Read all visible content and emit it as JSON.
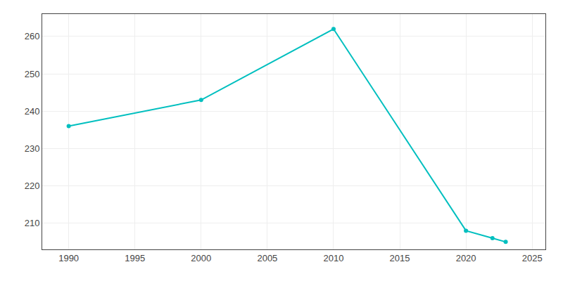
{
  "chart_data": {
    "type": "line",
    "x": [
      1990,
      2000,
      2010,
      2020,
      2022,
      2023
    ],
    "values": [
      236,
      243,
      262,
      208,
      206,
      205
    ],
    "color": "#00BFBF",
    "marker": "circle",
    "line_style": "solid",
    "xlim": [
      1988,
      2026
    ],
    "ylim": [
      203,
      266
    ],
    "xticks": [
      1990,
      1995,
      2000,
      2005,
      2010,
      2015,
      2020,
      2025
    ],
    "yticks": [
      210,
      220,
      230,
      240,
      250,
      260
    ],
    "grid": true
  }
}
